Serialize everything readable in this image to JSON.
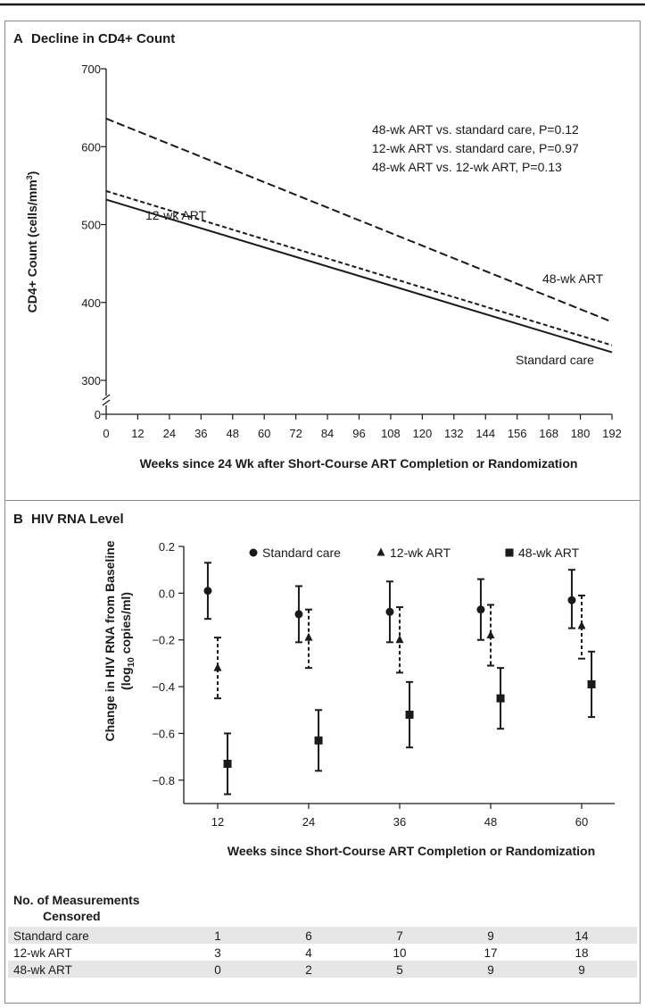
{
  "panel_a": {
    "letter": "A",
    "title": "Decline in CD4+ Count",
    "chart_data": {
      "type": "line",
      "title": "Decline in CD4+ Count",
      "xlabel": "Weeks since 24 Wk after Short-Course ART Completion or Randomization",
      "ylabel": "CD4+ Count (cells/mm³)",
      "ylabel_main": "CD4+ Count (cells/mm",
      "ylabel_sup": "3",
      "ylabel_end": ")",
      "xlim": [
        0,
        192
      ],
      "ylim": [
        300,
        700
      ],
      "y_axis_break": true,
      "x_ticks": [
        0,
        12,
        24,
        36,
        48,
        60,
        72,
        84,
        96,
        108,
        120,
        132,
        144,
        156,
        168,
        180,
        192
      ],
      "y_ticks": [
        300,
        400,
        500,
        600,
        700
      ],
      "y_ticks_extra": [
        0
      ],
      "series": [
        {
          "name": "48-wk ART",
          "style": "long-dash",
          "x": [
            0,
            192
          ],
          "y": [
            636,
            375
          ]
        },
        {
          "name": "12-wk ART",
          "style": "short-dash",
          "x": [
            0,
            192
          ],
          "y": [
            543,
            345
          ]
        },
        {
          "name": "Standard care",
          "style": "solid",
          "x": [
            0,
            192
          ],
          "y": [
            532,
            336
          ]
        }
      ],
      "annotations": [
        "48-wk ART vs. standard care, P=0.12",
        "12-wk ART vs. standard care, P=0.97",
        "48-wk ART vs. 12-wk ART, P=0.13"
      ]
    }
  },
  "panel_b": {
    "letter": "B",
    "title": "HIV RNA Level",
    "chart_data": {
      "type": "scatter",
      "title": "HIV RNA Level",
      "xlabel": "Weeks since Short-Course ART Completion or Randomization",
      "ylabel_line1": "Change in HIV RNA from Baseline",
      "ylabel_line2_pre": "(log",
      "ylabel_line2_sub": "10",
      "ylabel_line2_post": " copies/ml)",
      "ylim": [
        -0.9,
        0.2
      ],
      "y_ticks": [
        0.2,
        0.0,
        -0.2,
        -0.4,
        -0.6,
        -0.8
      ],
      "y_tick_labels": [
        "0.2",
        "0.0",
        "−0.2",
        "−0.4",
        "−0.6",
        "−0.8"
      ],
      "categories": [
        "12",
        "24",
        "36",
        "48",
        "60"
      ],
      "legend_position": "top",
      "series": [
        {
          "name": "Standard care",
          "marker": "circle",
          "errorbar": "solid",
          "x_offset": -1.3,
          "values": [
            0.01,
            -0.09,
            -0.08,
            -0.07,
            -0.03
          ],
          "lower": [
            -0.11,
            -0.21,
            -0.21,
            -0.2,
            -0.15
          ],
          "upper": [
            0.13,
            0.03,
            0.05,
            0.06,
            0.1
          ]
        },
        {
          "name": "12-wk ART",
          "marker": "triangle",
          "errorbar": "dashed",
          "x_offset": 0,
          "values": [
            -0.32,
            -0.19,
            -0.2,
            -0.18,
            -0.14
          ],
          "lower": [
            -0.45,
            -0.32,
            -0.34,
            -0.31,
            -0.28
          ],
          "upper": [
            -0.19,
            -0.07,
            -0.06,
            -0.05,
            -0.01
          ]
        },
        {
          "name": "48-wk ART",
          "marker": "square",
          "errorbar": "solid",
          "x_offset": 1.3,
          "values": [
            -0.73,
            -0.63,
            -0.52,
            -0.45,
            -0.39
          ],
          "lower": [
            -0.86,
            -0.76,
            -0.66,
            -0.58,
            -0.53
          ],
          "upper": [
            -0.6,
            -0.5,
            -0.38,
            -0.32,
            -0.25
          ]
        }
      ]
    }
  },
  "table": {
    "header_line1": "No. of Measurements",
    "header_line2": "Censored",
    "rows": [
      {
        "label": "Standard care",
        "values": [
          "1",
          "6",
          "7",
          "9",
          "14"
        ],
        "shaded": true
      },
      {
        "label": "12-wk ART",
        "values": [
          "3",
          "4",
          "10",
          "17",
          "18"
        ],
        "shaded": false
      },
      {
        "label": "48-wk ART",
        "values": [
          "0",
          "2",
          "5",
          "9",
          "9"
        ],
        "shaded": true
      }
    ]
  },
  "colors": {
    "ink": "#1a1a1a",
    "border": "#8a8a8a",
    "row_shade": "#e6e6e6"
  }
}
